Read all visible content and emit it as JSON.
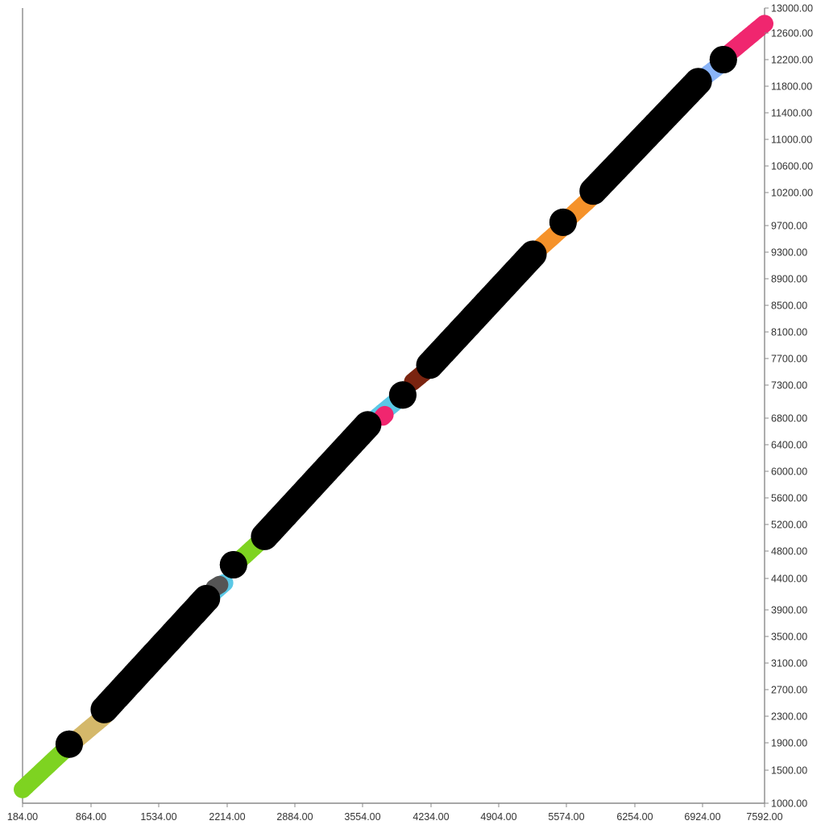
{
  "chart_data": {
    "type": "scatter",
    "title": "",
    "xlabel": "",
    "ylabel": "",
    "grid": false,
    "legend": "none",
    "x_ticks": [
      "184.00",
      "864.00",
      "1534.00",
      "2214.00",
      "2884.00",
      "3554.00",
      "4234.00",
      "4904.00",
      "5574.00",
      "6254.00",
      "6924.00",
      "7592.00"
    ],
    "y_ticks": [
      "1000.00",
      "1500.00",
      "1900.00",
      "2300.00",
      "2700.00",
      "3100.00",
      "3500.00",
      "3900.00",
      "4400.00",
      "4800.00",
      "5200.00",
      "5600.00",
      "6000.00",
      "6400.00",
      "6800.00",
      "7300.00",
      "7700.00",
      "8100.00",
      "8500.00",
      "8900.00",
      "9300.00",
      "9700.00",
      "10200.00",
      "10600.00",
      "11000.00",
      "11400.00",
      "11800.00",
      "12200.00",
      "12600.00",
      "13000.00"
    ],
    "xlim": [
      184,
      7592
    ],
    "ylim": [
      1000,
      13000
    ],
    "series_colors": [
      "#7ed321",
      "#d4b86a",
      "#000000",
      "#5ac8e6",
      "#555555",
      "#f0266f",
      "#7a2410",
      "#f5922a",
      "#8ab4f8"
    ],
    "segments": [
      {
        "x0": 184,
        "y0": 1210,
        "x1": 650,
        "y1": 1860,
        "color": "#7ed321",
        "size": "small"
      },
      {
        "x0": 650,
        "y0": 1860,
        "x1": 1000,
        "y1": 2300,
        "color": "#d4b86a",
        "size": "small"
      },
      {
        "x0": 650,
        "y0": 1880,
        "x1": 650,
        "y1": 1880,
        "color": "#000000",
        "size": "large"
      },
      {
        "x0": 1000,
        "y0": 2400,
        "x1": 2020,
        "y1": 4080,
        "color": "#000000",
        "size": "large"
      },
      {
        "x0": 2020,
        "y0": 4080,
        "x1": 2200,
        "y1": 4330,
        "color": "#5ac8e6",
        "size": "small"
      },
      {
        "x0": 2100,
        "y0": 4250,
        "x1": 2150,
        "y1": 4300,
        "color": "#555555",
        "size": "small"
      },
      {
        "x0": 2290,
        "y0": 4600,
        "x1": 2290,
        "y1": 4600,
        "color": "#000000",
        "size": "large"
      },
      {
        "x0": 2300,
        "y0": 4600,
        "x1": 2560,
        "y1": 4950,
        "color": "#7ed321",
        "size": "small"
      },
      {
        "x0": 2600,
        "y0": 5020,
        "x1": 3630,
        "y1": 6700,
        "color": "#000000",
        "size": "large"
      },
      {
        "x0": 3630,
        "y0": 6700,
        "x1": 3950,
        "y1": 7100,
        "color": "#5ac8e6",
        "size": "small"
      },
      {
        "x0": 3780,
        "y0": 6820,
        "x1": 3800,
        "y1": 6850,
        "color": "#f0266f",
        "size": "small"
      },
      {
        "x0": 3980,
        "y0": 7150,
        "x1": 3980,
        "y1": 7150,
        "color": "#000000",
        "size": "large"
      },
      {
        "x0": 4080,
        "y0": 7350,
        "x1": 4200,
        "y1": 7500,
        "color": "#7a2410",
        "size": "small"
      },
      {
        "x0": 4250,
        "y0": 7600,
        "x1": 5280,
        "y1": 9270,
        "color": "#000000",
        "size": "large"
      },
      {
        "x0": 5280,
        "y0": 9270,
        "x1": 5600,
        "y1": 9700,
        "color": "#f5922a",
        "size": "small"
      },
      {
        "x0": 5580,
        "y0": 9750,
        "x1": 5580,
        "y1": 9750,
        "color": "#000000",
        "size": "large"
      },
      {
        "x0": 5630,
        "y0": 9800,
        "x1": 5880,
        "y1": 10150,
        "color": "#f5922a",
        "size": "small"
      },
      {
        "x0": 5880,
        "y0": 10220,
        "x1": 6930,
        "y1": 11870,
        "color": "#000000",
        "size": "large"
      },
      {
        "x0": 6930,
        "y0": 11870,
        "x1": 7200,
        "y1": 12180,
        "color": "#8ab4f8",
        "size": "small"
      },
      {
        "x0": 7180,
        "y0": 12200,
        "x1": 7180,
        "y1": 12200,
        "color": "#000000",
        "size": "large"
      },
      {
        "x0": 7200,
        "y0": 12250,
        "x1": 7592,
        "y1": 12750,
        "color": "#f0266f",
        "size": "small"
      }
    ]
  }
}
